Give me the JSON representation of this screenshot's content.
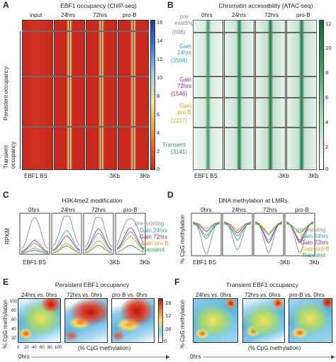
{
  "panelA": {
    "letter": "A",
    "title": "EBF1 occupancy (ChIP-seq)",
    "columns": [
      "input",
      "24hrs",
      "72hrs",
      "pro-B"
    ],
    "row_groups": [
      "Persistent occupancy",
      "Transient occupancy"
    ],
    "bottom_left": "EBF1 BS",
    "bottom_mid": "-3Kb",
    "bottom_right": "3Kb",
    "colorbar_ticks": [
      "16",
      "14",
      "12",
      "10",
      "8",
      "6",
      "4",
      "2",
      "0"
    ],
    "colors": {
      "low": "#c8281e",
      "high": "#1e3aa8",
      "mid": "#f2d060"
    }
  },
  "panelB": {
    "letter": "B",
    "title": "Chromatin accessibility (ATAC-seq)",
    "columns": [
      "0hrs",
      "24hrs",
      "72hrs",
      "pro-B"
    ],
    "groups": [
      {
        "name": "pre-existing",
        "count": "(696)",
        "color": "#8c8c8c"
      },
      {
        "name": "Gain 24hrs",
        "count": "(3504)",
        "color": "#2aa6d8"
      },
      {
        "name": "Gain 72hrs",
        "count": "(1546)",
        "color": "#b0208c"
      },
      {
        "name": "Gain pro-B",
        "count": "(2217)",
        "color": "#e0a020"
      },
      {
        "name": "Transient",
        "count": "(3141)",
        "color": "#2aa84a"
      }
    ],
    "bottom_left": "EBF1 BS",
    "bottom_mid": "-3Kb",
    "bottom_right": "3Kb",
    "colorbar_ticks": [
      "12",
      "10",
      "8",
      "6",
      "4",
      "2",
      "0"
    ],
    "colors": {
      "low": "#ffffff",
      "high": "#0f6b3a"
    }
  },
  "panelC": {
    "letter": "C",
    "title": "H3K4me2 modification",
    "ylabel": "RPKM",
    "columns": [
      "0hrs",
      "24hrs",
      "72hrs",
      "pro-B"
    ],
    "bottom_left": "EBF1 BS",
    "bottom_mid": "-3Kb",
    "bottom_right": "3Kb",
    "legend": [
      "pre-existing",
      "Gain 24hrs",
      "Gain 72hrs",
      "Gain pro-B",
      "Transient"
    ]
  },
  "panelD": {
    "letter": "D",
    "title": "DNA methylation at LMRs",
    "ylabel": "% CpG methylation",
    "columns": [
      "0hrs",
      "24hrs",
      "72hrs",
      "pro-B"
    ],
    "bottom_left": "EBF1 BS",
    "bottom_mid": "-3Kb",
    "bottom_right": "3Kb",
    "legend": [
      "pre-existing",
      "Gain 24hrs",
      "Gain 72hrs",
      "Gain pro-B",
      "Transient"
    ]
  },
  "panelE": {
    "letter": "E",
    "title": "Persistent EBF1 occupancy",
    "ylabel": "% CpG methylation",
    "xlabel": "(% CpG methylation)",
    "xlabel_bottom": "0hrs",
    "panels": [
      "24hrs vs. 0hrs",
      "72hrs vs. 0hrs",
      "pro-B vs. 0hrs"
    ],
    "x_ticks": [
      "0",
      "20",
      "40",
      "60",
      "80",
      "100"
    ],
    "y_ticks": [
      "100",
      "80",
      "60",
      "40",
      "20"
    ],
    "colorbar_ticks": [
      ".18",
      ".12",
      ".06",
      "0"
    ]
  },
  "panelF": {
    "letter": "F",
    "title": "Transient EBF1 occupancy",
    "ylabel": "% CpG methylation",
    "xlabel": "(% CpG methylation)",
    "xlabel_bottom": "0hrs",
    "panels": [
      "24hrs vs. 0hrs",
      "72hrs vs. 0hrs",
      "pro-B vs. 0hrs"
    ]
  }
}
